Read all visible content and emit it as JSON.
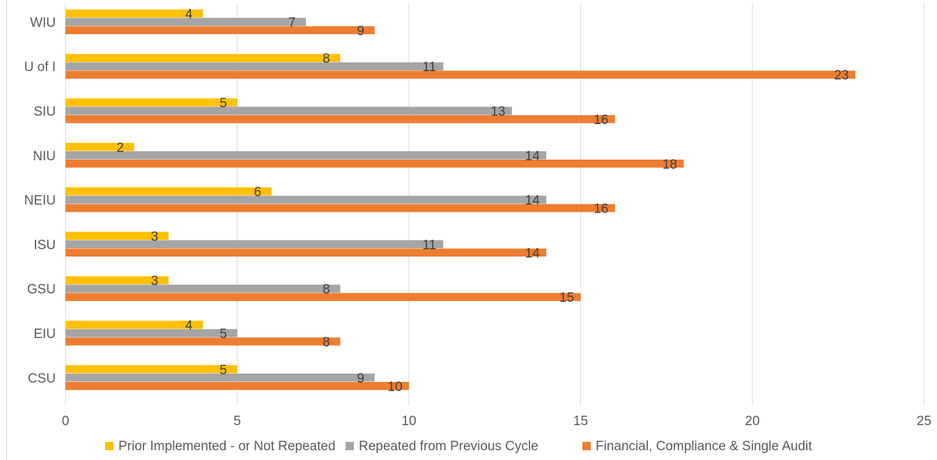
{
  "chart_data": {
    "type": "bar",
    "orientation": "horizontal",
    "categories": [
      "CSU",
      "EIU",
      "GSU",
      "ISU",
      "NEIU",
      "NIU",
      "SIU",
      "U of I",
      "WIU"
    ],
    "series": [
      {
        "name": "Prior Implemented - or Not Repeated",
        "color": "#ffc000",
        "values": [
          5,
          4,
          3,
          3,
          6,
          2,
          5,
          8,
          4
        ]
      },
      {
        "name": "Repeated from Previous Cycle",
        "color": "#a5a5a5",
        "values": [
          9,
          5,
          8,
          11,
          14,
          14,
          13,
          11,
          7
        ]
      },
      {
        "name": "Financial, Compliance & Single Audit",
        "color": "#ed7d31",
        "values": [
          10,
          8,
          15,
          14,
          16,
          18,
          16,
          23,
          9
        ]
      }
    ],
    "xlim": [
      0,
      25
    ],
    "xticks": [
      "0",
      "5",
      "10",
      "15",
      "20",
      "25"
    ],
    "grid": true,
    "data_labels": true,
    "legend_position": "bottom"
  }
}
